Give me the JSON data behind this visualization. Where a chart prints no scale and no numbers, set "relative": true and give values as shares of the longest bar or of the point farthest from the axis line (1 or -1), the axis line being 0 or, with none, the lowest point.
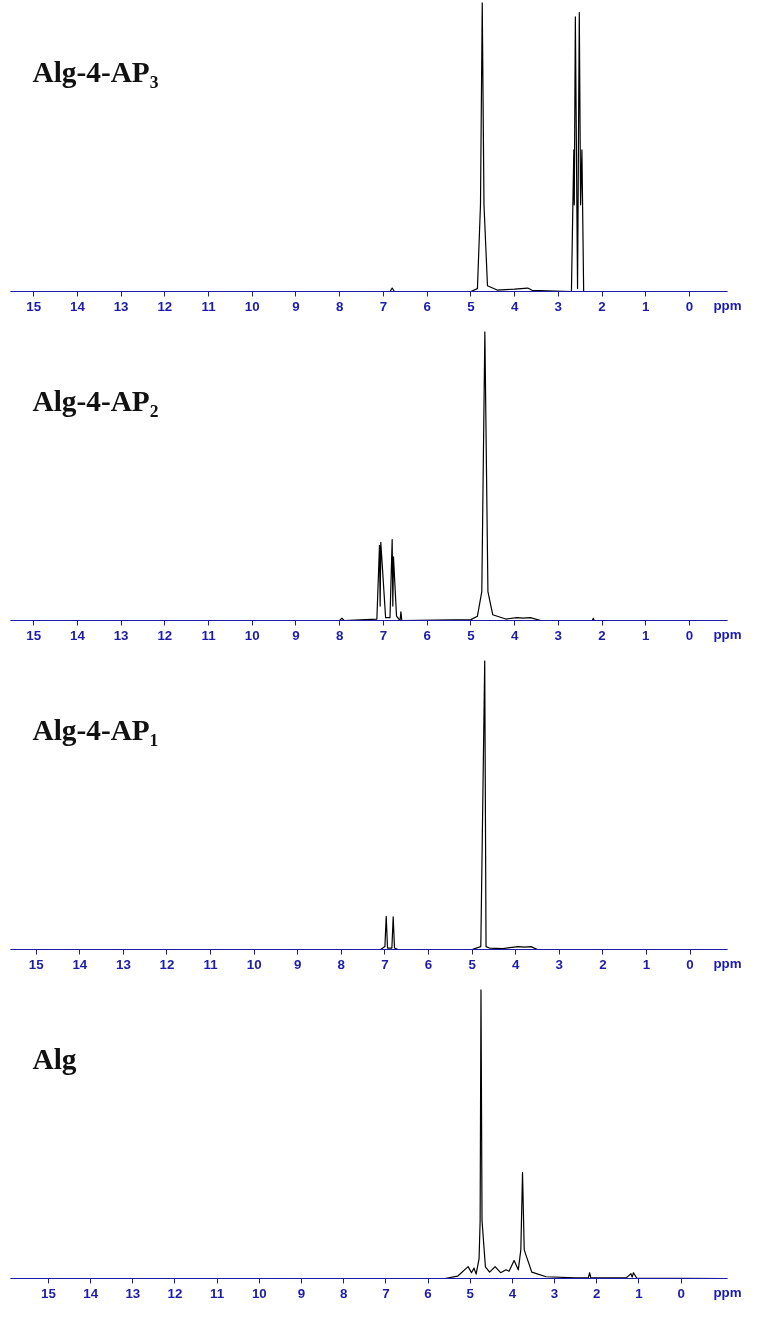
{
  "chart_data": [
    {
      "type": "line",
      "title": "Alg-4-AP₃",
      "xlabel": "ppm",
      "relative": true,
      "xlim": [
        15.53,
        -0.87
      ],
      "xticks": [
        15,
        14,
        13,
        12,
        11,
        10,
        9,
        8,
        7,
        6,
        5,
        4,
        3,
        2,
        1,
        0
      ],
      "grid": false,
      "marker": "none",
      "line_style": "solid",
      "x": [
        15.53,
        7.0,
        6.85,
        6.8,
        6.75,
        5.0,
        4.85,
        4.78,
        4.74,
        4.7,
        4.62,
        4.4,
        4.0,
        3.7,
        3.6,
        2.7,
        2.645,
        2.635,
        2.61,
        2.56,
        2.52,
        2.49,
        2.46,
        2.42,
        -0.87
      ],
      "series": [
        {
          "color": "#000000",
          "values": [
            0,
            0,
            0,
            0.012,
            0,
            0,
            0.01,
            0.3,
            1.0,
            0.3,
            0.02,
            0.005,
            0.008,
            0.012,
            0.004,
            0,
            0.49,
            0.3,
            0.95,
            0.01,
            0.965,
            0.3,
            0.49,
            0,
            0
          ]
        }
      ]
    },
    {
      "type": "line",
      "title": "Alg-4-AP₂",
      "xlabel": "ppm",
      "relative": true,
      "xlim": [
        15.53,
        -0.87
      ],
      "xticks": [
        15,
        14,
        13,
        12,
        11,
        10,
        9,
        8,
        7,
        6,
        5,
        4,
        3,
        2,
        1,
        0
      ],
      "grid": false,
      "marker": "none",
      "line_style": "solid",
      "x": [
        15.53,
        8.0,
        7.95,
        7.9,
        7.15,
        7.09,
        7.075,
        7.06,
        6.95,
        6.85,
        6.8,
        6.785,
        6.77,
        6.7,
        6.62,
        6.6,
        6.58,
        5.0,
        4.85,
        4.75,
        4.68,
        4.61,
        4.5,
        4.2,
        3.95,
        3.8,
        3.64,
        3.4,
        2.22,
        2.2,
        2.18,
        -0.87
      ],
      "series": [
        {
          "color": "#000000",
          "values": [
            0,
            0,
            0.008,
            0,
            0.005,
            0.26,
            0.05,
            0.27,
            0.01,
            0.01,
            0.28,
            0.05,
            0.22,
            0.015,
            0,
            0.03,
            0,
            0.003,
            0.015,
            0.1,
            1.0,
            0.1,
            0.02,
            0.005,
            0.01,
            0.008,
            0.01,
            0,
            0,
            0.008,
            0,
            0
          ]
        }
      ]
    },
    {
      "type": "line",
      "title": "Alg-4-AP₁",
      "xlabel": "ppm",
      "relative": true,
      "xlim": [
        15.59,
        -0.86
      ],
      "xticks": [
        15,
        14,
        13,
        12,
        11,
        10,
        9,
        8,
        7,
        6,
        5,
        4,
        3,
        2,
        1,
        0
      ],
      "grid": false,
      "marker": "none",
      "line_style": "solid",
      "x": [
        15.59,
        7.1,
        7.0,
        6.97,
        6.94,
        6.84,
        6.81,
        6.78,
        6.7,
        5.0,
        4.8,
        4.71,
        4.68,
        4.6,
        4.3,
        3.95,
        3.8,
        3.65,
        3.5,
        -0.86
      ],
      "series": [
        {
          "color": "#000000",
          "values": [
            0,
            0,
            0.01,
            0.115,
            0.005,
            0.005,
            0.113,
            0.005,
            0,
            0,
            0.01,
            1.0,
            0.01,
            0.005,
            0.003,
            0.01,
            0.008,
            0.01,
            0,
            0
          ]
        }
      ]
    },
    {
      "type": "line",
      "title": "Alg",
      "xlabel": "ppm",
      "relative": true,
      "xlim": [
        15.9,
        -1.1
      ],
      "xticks": [
        15,
        14,
        13,
        12,
        11,
        10,
        9,
        8,
        7,
        6,
        5,
        4,
        3,
        2,
        1,
        0
      ],
      "grid": false,
      "marker": "none",
      "line_style": "solid",
      "x": [
        15.9,
        5.6,
        5.3,
        5.05,
        4.97,
        4.91,
        4.86,
        4.79,
        4.765,
        4.745,
        4.72,
        4.64,
        4.54,
        4.41,
        4.28,
        4.15,
        4.08,
        3.96,
        3.86,
        3.8,
        3.76,
        3.72,
        3.69,
        3.54,
        3.2,
        2.5,
        2.2,
        2.17,
        2.14,
        1.3,
        1.19,
        1.16,
        1.13,
        1.05,
        -1.1
      ],
      "series": [
        {
          "color": "#000000",
          "values": [
            0,
            0,
            0.008,
            0.041,
            0.02,
            0.036,
            0.015,
            0.069,
            0.2,
            1.0,
            0.2,
            0.04,
            0.022,
            0.041,
            0.02,
            0.03,
            0.025,
            0.062,
            0.03,
            0.1,
            0.367,
            0.1,
            0.086,
            0.022,
            0.006,
            0.002,
            0.002,
            0.02,
            0.002,
            0.002,
            0.017,
            0.005,
            0.02,
            0.001,
            0
          ]
        }
      ]
    }
  ]
}
